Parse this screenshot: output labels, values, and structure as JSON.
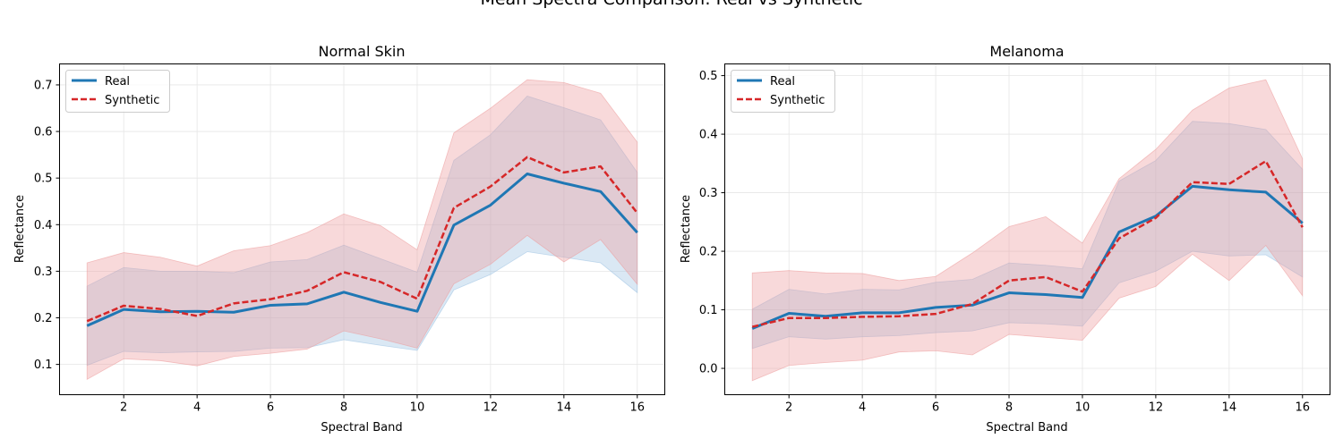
{
  "figure": {
    "suptitle": "Mean Spectra Comparison: Real vs Synthetic"
  },
  "style": {
    "real_color": "#1f77b4",
    "synthetic_color": "#d62728",
    "real_fill": "#9ec3e2",
    "synthetic_fill": "#ec9c9d",
    "grid_color": "#e6e6e6"
  },
  "chart_data": [
    {
      "type": "line",
      "title": "Normal Skin",
      "xlabel": "Spectral Band",
      "ylabel": "Reflectance",
      "xlim": [
        0.25,
        16.75
      ],
      "ylim": [
        0.035,
        0.745
      ],
      "xticks": [
        2,
        4,
        6,
        8,
        10,
        12,
        14,
        16
      ],
      "yticks": [
        0.1,
        0.2,
        0.3,
        0.4,
        0.5,
        0.6,
        0.7
      ],
      "grid": true,
      "legend_position": "top-left",
      "x": [
        1,
        2,
        3,
        4,
        5,
        6,
        7,
        8,
        9,
        10,
        11,
        12,
        13,
        14,
        15,
        16
      ],
      "series": [
        {
          "name": "Real",
          "style": "solid",
          "values": [
            0.183,
            0.218,
            0.213,
            0.214,
            0.212,
            0.227,
            0.23,
            0.255,
            0.233,
            0.214,
            0.399,
            0.442,
            0.509,
            0.489,
            0.471,
            0.383
          ],
          "lower": [
            0.098,
            0.128,
            0.125,
            0.127,
            0.128,
            0.135,
            0.136,
            0.153,
            0.141,
            0.13,
            0.26,
            0.293,
            0.342,
            0.33,
            0.318,
            0.254
          ],
          "upper": [
            0.268,
            0.308,
            0.3,
            0.3,
            0.297,
            0.32,
            0.325,
            0.356,
            0.327,
            0.298,
            0.538,
            0.593,
            0.676,
            0.651,
            0.625,
            0.512
          ]
        },
        {
          "name": "Synthetic",
          "style": "dashed",
          "values": [
            0.193,
            0.226,
            0.219,
            0.204,
            0.231,
            0.24,
            0.258,
            0.298,
            0.277,
            0.241,
            0.436,
            0.482,
            0.545,
            0.512,
            0.525,
            0.425
          ],
          "lower": [
            0.068,
            0.112,
            0.108,
            0.097,
            0.117,
            0.124,
            0.133,
            0.172,
            0.155,
            0.135,
            0.273,
            0.315,
            0.377,
            0.32,
            0.368,
            0.272
          ],
          "upper": [
            0.318,
            0.34,
            0.33,
            0.311,
            0.344,
            0.355,
            0.383,
            0.423,
            0.398,
            0.346,
            0.597,
            0.65,
            0.711,
            0.705,
            0.682,
            0.577
          ]
        }
      ]
    },
    {
      "type": "line",
      "title": "Melanoma",
      "xlabel": "Spectral Band",
      "ylabel": "Reflectance",
      "xlim": [
        0.25,
        16.75
      ],
      "ylim": [
        -0.045,
        0.52
      ],
      "xticks": [
        2,
        4,
        6,
        8,
        10,
        12,
        14,
        16
      ],
      "yticks": [
        0.0,
        0.1,
        0.2,
        0.3,
        0.4,
        0.5
      ],
      "ytick_labels": [
        "0.0",
        "0.1",
        "0.2",
        "0.3",
        "0.4",
        "0.5"
      ],
      "grid": true,
      "legend_position": "top-left",
      "x": [
        1,
        2,
        3,
        4,
        5,
        6,
        7,
        8,
        9,
        10,
        11,
        12,
        13,
        14,
        15,
        16
      ],
      "series": [
        {
          "name": "Real",
          "style": "solid",
          "values": [
            0.068,
            0.094,
            0.089,
            0.095,
            0.095,
            0.104,
            0.108,
            0.129,
            0.126,
            0.121,
            0.233,
            0.26,
            0.311,
            0.305,
            0.301,
            0.248
          ],
          "lower": [
            0.034,
            0.054,
            0.05,
            0.054,
            0.056,
            0.061,
            0.064,
            0.078,
            0.076,
            0.072,
            0.146,
            0.166,
            0.2,
            0.192,
            0.194,
            0.156
          ],
          "upper": [
            0.101,
            0.135,
            0.127,
            0.135,
            0.134,
            0.147,
            0.152,
            0.18,
            0.176,
            0.17,
            0.32,
            0.355,
            0.422,
            0.418,
            0.408,
            0.34
          ]
        },
        {
          "name": "Synthetic",
          "style": "dashed",
          "values": [
            0.071,
            0.086,
            0.086,
            0.088,
            0.089,
            0.093,
            0.11,
            0.15,
            0.156,
            0.131,
            0.222,
            0.257,
            0.318,
            0.315,
            0.354,
            0.241
          ],
          "lower": [
            -0.021,
            0.005,
            0.01,
            0.014,
            0.028,
            0.03,
            0.023,
            0.058,
            0.053,
            0.048,
            0.12,
            0.14,
            0.195,
            0.15,
            0.21,
            0.124
          ],
          "upper": [
            0.163,
            0.167,
            0.163,
            0.162,
            0.15,
            0.157,
            0.197,
            0.242,
            0.259,
            0.214,
            0.324,
            0.374,
            0.441,
            0.479,
            0.493,
            0.358
          ]
        }
      ]
    }
  ]
}
